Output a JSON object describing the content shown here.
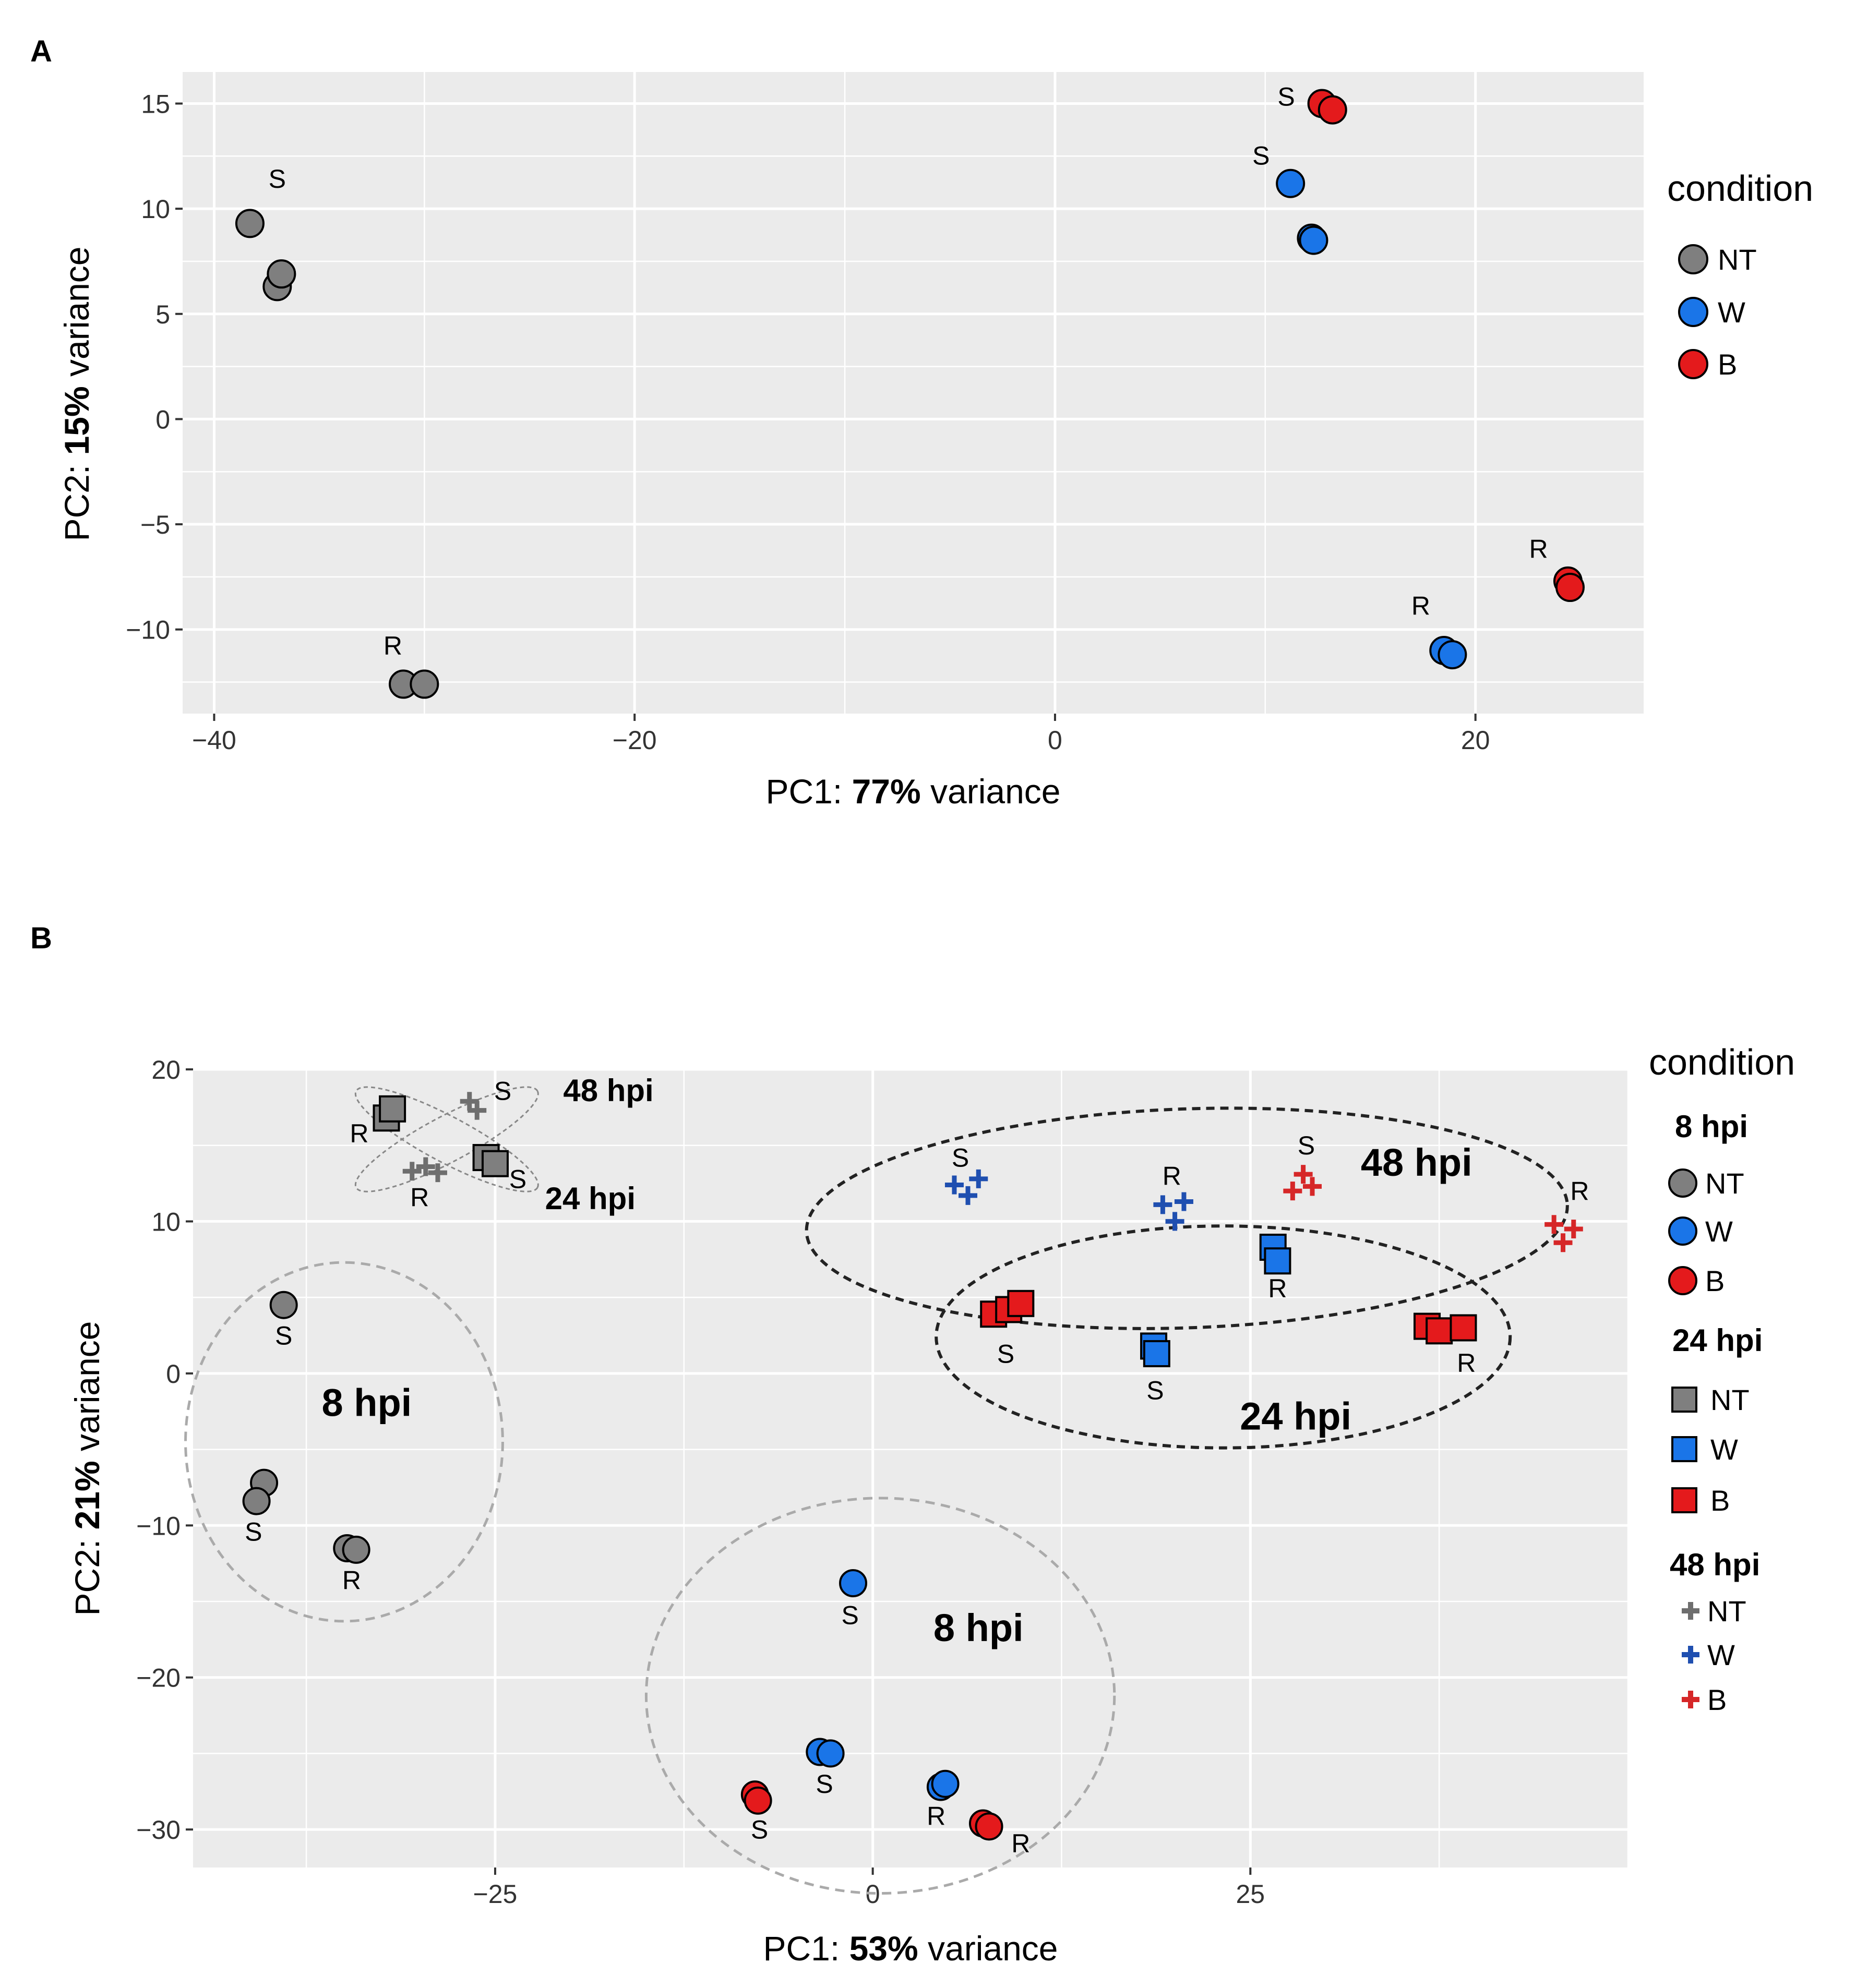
{
  "colors": {
    "NT": "#7f7f7f",
    "W": "#1a75e8",
    "B": "#e41a1c",
    "W_cross": "#1f4fb0",
    "B_cross": "#d62728",
    "NT_cross": "#6e6e6e",
    "panel_bg": "#ebebeb",
    "grid": "#ffffff"
  },
  "chart_data": [
    {
      "panel": "A",
      "type": "scatter",
      "xlabel_prefix": "PC1: ",
      "xlabel_bold": "77%",
      "xlabel_suffix": " variance",
      "ylabel_prefix": "PC2: ",
      "ylabel_bold": "15%",
      "ylabel_suffix": " variance",
      "xlim": [
        -41.5,
        28
      ],
      "ylim": [
        -14,
        16.5
      ],
      "xticks": [
        -40,
        -20,
        0,
        20
      ],
      "xtick_labels": [
        "−40",
        "−20",
        "0",
        "20"
      ],
      "yticks": [
        -10,
        -5,
        0,
        5,
        10,
        15
      ],
      "ytick_labels": [
        "−10",
        "−5",
        "0",
        "5",
        "10",
        "15"
      ],
      "legend": {
        "title": "condition",
        "items": [
          {
            "label": "NT",
            "color_key": "NT"
          },
          {
            "label": "W",
            "color_key": "W"
          },
          {
            "label": "B",
            "color_key": "B"
          }
        ]
      },
      "points": [
        {
          "x": -38.3,
          "y": 9.3,
          "c": "NT"
        },
        {
          "x": -37.0,
          "y": 6.3,
          "c": "NT"
        },
        {
          "x": -36.8,
          "y": 6.9,
          "c": "NT"
        },
        {
          "x": -31.0,
          "y": -12.6,
          "c": "NT"
        },
        {
          "x": -30.0,
          "y": -12.6,
          "c": "NT"
        },
        {
          "x": 11.2,
          "y": 11.2,
          "c": "W"
        },
        {
          "x": 12.2,
          "y": 8.6,
          "c": "W"
        },
        {
          "x": 12.3,
          "y": 8.5,
          "c": "W"
        },
        {
          "x": 18.5,
          "y": -11.0,
          "c": "W"
        },
        {
          "x": 18.9,
          "y": -11.2,
          "c": "W"
        },
        {
          "x": 12.7,
          "y": 15.0,
          "c": "B"
        },
        {
          "x": 13.2,
          "y": 14.7,
          "c": "B"
        },
        {
          "x": 24.4,
          "y": -7.7,
          "c": "B"
        },
        {
          "x": 24.5,
          "y": -8.0,
          "c": "B"
        }
      ],
      "annotations": [
        {
          "text": "S",
          "x": -37.0,
          "y": 11.0
        },
        {
          "text": "S",
          "x": 11.0,
          "y": 14.9
        },
        {
          "text": "S",
          "x": 9.8,
          "y": 12.1
        },
        {
          "text": "R",
          "x": -31.5,
          "y": -11.2
        },
        {
          "text": "R",
          "x": 17.4,
          "y": -9.3
        },
        {
          "text": "R",
          "x": 23.0,
          "y": -6.6
        }
      ]
    },
    {
      "panel": "B",
      "type": "scatter",
      "xlabel_prefix": "PC1: ",
      "xlabel_bold": "53%",
      "xlabel_suffix": " variance",
      "ylabel_prefix": "PC2: ",
      "ylabel_bold": "21%",
      "ylabel_suffix": " variance",
      "xlim": [
        -45,
        50
      ],
      "ylim": [
        -32.5,
        20
      ],
      "xticks": [
        -25,
        0,
        25
      ],
      "xtick_labels": [
        "−25",
        "0",
        "25"
      ],
      "yticks": [
        -30,
        -20,
        -10,
        0,
        10,
        20
      ],
      "ytick_labels": [
        "−30",
        "−20",
        "−10",
        "0",
        "10",
        "20"
      ],
      "legend": {
        "title": "condition",
        "groups": [
          {
            "label": "8 hpi",
            "shape": "circle",
            "items": [
              {
                "label": "NT",
                "color_key": "NT"
              },
              {
                "label": "W",
                "color_key": "W"
              },
              {
                "label": "B",
                "color_key": "B"
              }
            ]
          },
          {
            "label": "24 hpi",
            "shape": "square",
            "items": [
              {
                "label": "NT",
                "color_key": "NT"
              },
              {
                "label": "W",
                "color_key": "W"
              },
              {
                "label": "B",
                "color_key": "B"
              }
            ]
          },
          {
            "label": "48 hpi",
            "shape": "cross",
            "items": [
              {
                "label": "NT",
                "color_key": "NT_cross"
              },
              {
                "label": "W",
                "color_key": "W_cross"
              },
              {
                "label": "B",
                "color_key": "B_cross"
              }
            ]
          }
        ]
      },
      "points": [
        {
          "x": -39.0,
          "y": 4.5,
          "c": "NT",
          "s": "circle"
        },
        {
          "x": -40.3,
          "y": -7.2,
          "c": "NT",
          "s": "circle"
        },
        {
          "x": -40.8,
          "y": -8.4,
          "c": "NT",
          "s": "circle"
        },
        {
          "x": -34.8,
          "y": -11.5,
          "c": "NT",
          "s": "circle"
        },
        {
          "x": -34.2,
          "y": -11.6,
          "c": "NT",
          "s": "circle"
        },
        {
          "x": -1.3,
          "y": -13.8,
          "c": "W",
          "s": "circle"
        },
        {
          "x": -3.5,
          "y": -24.9,
          "c": "W",
          "s": "circle"
        },
        {
          "x": -2.8,
          "y": -25.0,
          "c": "W",
          "s": "circle"
        },
        {
          "x": 4.5,
          "y": -27.2,
          "c": "W",
          "s": "circle"
        },
        {
          "x": 4.8,
          "y": -27.0,
          "c": "W",
          "s": "circle"
        },
        {
          "x": -7.8,
          "y": -27.7,
          "c": "B",
          "s": "circle"
        },
        {
          "x": -7.6,
          "y": -28.1,
          "c": "B",
          "s": "circle"
        },
        {
          "x": 7.3,
          "y": -29.6,
          "c": "B",
          "s": "circle"
        },
        {
          "x": 7.7,
          "y": -29.8,
          "c": "B",
          "s": "circle"
        },
        {
          "x": -32.2,
          "y": 16.8,
          "c": "NT",
          "s": "square"
        },
        {
          "x": -31.8,
          "y": 17.4,
          "c": "NT",
          "s": "square"
        },
        {
          "x": -25.6,
          "y": 14.2,
          "c": "NT",
          "s": "square"
        },
        {
          "x": -25.0,
          "y": 13.8,
          "c": "NT",
          "s": "square"
        },
        {
          "x": 18.6,
          "y": 1.8,
          "c": "W",
          "s": "square"
        },
        {
          "x": 18.8,
          "y": 1.3,
          "c": "W",
          "s": "square"
        },
        {
          "x": 26.5,
          "y": 8.3,
          "c": "W",
          "s": "square"
        },
        {
          "x": 26.8,
          "y": 7.4,
          "c": "W",
          "s": "square"
        },
        {
          "x": 8.0,
          "y": 3.9,
          "c": "B",
          "s": "square"
        },
        {
          "x": 9.0,
          "y": 4.2,
          "c": "B",
          "s": "square"
        },
        {
          "x": 9.8,
          "y": 4.6,
          "c": "B",
          "s": "square"
        },
        {
          "x": 36.7,
          "y": 3.1,
          "c": "B",
          "s": "square"
        },
        {
          "x": 37.5,
          "y": 2.8,
          "c": "B",
          "s": "square"
        },
        {
          "x": 39.1,
          "y": 3.0,
          "c": "B",
          "s": "square"
        },
        {
          "x": -26.7,
          "y": 17.9,
          "c": "NT_cross",
          "s": "cross"
        },
        {
          "x": -26.2,
          "y": 17.3,
          "c": "NT_cross",
          "s": "cross"
        },
        {
          "x": -30.5,
          "y": 13.3,
          "c": "NT_cross",
          "s": "cross"
        },
        {
          "x": -29.6,
          "y": 13.6,
          "c": "NT_cross",
          "s": "cross"
        },
        {
          "x": -28.8,
          "y": 13.2,
          "c": "NT_cross",
          "s": "cross"
        },
        {
          "x": 5.4,
          "y": 12.4,
          "c": "W_cross",
          "s": "cross"
        },
        {
          "x": 6.3,
          "y": 11.7,
          "c": "W_cross",
          "s": "cross"
        },
        {
          "x": 7.0,
          "y": 12.8,
          "c": "W_cross",
          "s": "cross"
        },
        {
          "x": 19.2,
          "y": 11.1,
          "c": "W_cross",
          "s": "cross"
        },
        {
          "x": 20.0,
          "y": 10.0,
          "c": "W_cross",
          "s": "cross"
        },
        {
          "x": 20.6,
          "y": 11.3,
          "c": "W_cross",
          "s": "cross"
        },
        {
          "x": 27.8,
          "y": 12.0,
          "c": "B_cross",
          "s": "cross"
        },
        {
          "x": 28.5,
          "y": 13.1,
          "c": "B_cross",
          "s": "cross"
        },
        {
          "x": 29.1,
          "y": 12.3,
          "c": "B_cross",
          "s": "cross"
        },
        {
          "x": 45.1,
          "y": 9.8,
          "c": "B_cross",
          "s": "cross"
        },
        {
          "x": 45.7,
          "y": 8.6,
          "c": "B_cross",
          "s": "cross"
        },
        {
          "x": 46.4,
          "y": 9.5,
          "c": "B_cross",
          "s": "cross"
        }
      ],
      "annotations": [
        {
          "text": "S",
          "x": -39.0,
          "y": 1.9,
          "cls": "pt-label"
        },
        {
          "text": "S",
          "x": -41.0,
          "y": -11.0,
          "cls": "pt-label"
        },
        {
          "text": "R",
          "x": -34.5,
          "y": -14.2,
          "cls": "pt-label"
        },
        {
          "text": "S",
          "x": -1.5,
          "y": -16.5,
          "cls": "pt-label"
        },
        {
          "text": "S",
          "x": -3.2,
          "y": -27.6,
          "cls": "pt-label"
        },
        {
          "text": "R",
          "x": 4.2,
          "y": -29.7,
          "cls": "pt-label"
        },
        {
          "text": "S",
          "x": -7.5,
          "y": -30.6,
          "cls": "pt-label"
        },
        {
          "text": "R",
          "x": 9.8,
          "y": -31.5,
          "cls": "pt-label"
        },
        {
          "text": "R",
          "x": -34.0,
          "y": 15.2,
          "cls": "pt-label"
        },
        {
          "text": "S",
          "x": -24.5,
          "y": 18.0,
          "cls": "pt-label"
        },
        {
          "text": "R",
          "x": -30.0,
          "y": 11.0,
          "cls": "pt-label"
        },
        {
          "text": "S",
          "x": -23.5,
          "y": 12.2,
          "cls": "pt-label"
        },
        {
          "text": "S",
          "x": 5.8,
          "y": 13.6,
          "cls": "pt-label"
        },
        {
          "text": "R",
          "x": 19.8,
          "y": 12.4,
          "cls": "pt-label"
        },
        {
          "text": "S",
          "x": 28.7,
          "y": 14.4,
          "cls": "pt-label"
        },
        {
          "text": "R",
          "x": 46.8,
          "y": 11.4,
          "cls": "pt-label"
        },
        {
          "text": "R",
          "x": 26.8,
          "y": 5.0,
          "cls": "pt-label"
        },
        {
          "text": "S",
          "x": 8.8,
          "y": 0.7,
          "cls": "pt-label"
        },
        {
          "text": "S",
          "x": 18.7,
          "y": -1.7,
          "cls": "pt-label"
        },
        {
          "text": "R",
          "x": 39.3,
          "y": 0.1,
          "cls": "pt-label"
        },
        {
          "text": "48 hpi",
          "x": -17.5,
          "y": 17.9,
          "cls": "cluster-label-small"
        },
        {
          "text": "24 hpi",
          "x": -18.7,
          "y": 10.8,
          "cls": "cluster-label-small"
        },
        {
          "text": "8 hpi",
          "x": -33.5,
          "y": -2.8,
          "cls": "cluster-label-big"
        },
        {
          "text": "8 hpi",
          "x": 7.0,
          "y": -17.6,
          "cls": "cluster-label-big"
        },
        {
          "text": "48 hpi",
          "x": 36.0,
          "y": 13.0,
          "cls": "cluster-label-big"
        },
        {
          "text": "24 hpi",
          "x": 28.0,
          "y": -3.7,
          "cls": "cluster-label-big"
        }
      ],
      "ellipses": [
        {
          "cx": -35.0,
          "cy": -4.5,
          "rx": 10.5,
          "ry": 11.8,
          "rot": 0,
          "style": "grey"
        },
        {
          "cx": 0.5,
          "cy": -21.2,
          "rx": 15.5,
          "ry": 13.0,
          "rot": 0,
          "style": "grey"
        },
        {
          "cx": 20.8,
          "cy": 10.2,
          "rx": 25.2,
          "ry": 7.2,
          "rot": -2,
          "style": "black"
        },
        {
          "cx": 23.2,
          "cy": 2.4,
          "rx": 19.0,
          "ry": 7.3,
          "rot": 0,
          "style": "black"
        },
        {
          "cx": -28.2,
          "cy": 15.4,
          "rx": 6.8,
          "ry": 1.5,
          "rot": -28,
          "style": "small"
        },
        {
          "cx": -28.2,
          "cy": 15.4,
          "rx": 6.8,
          "ry": 1.5,
          "rot": 28,
          "style": "small"
        }
      ]
    }
  ]
}
